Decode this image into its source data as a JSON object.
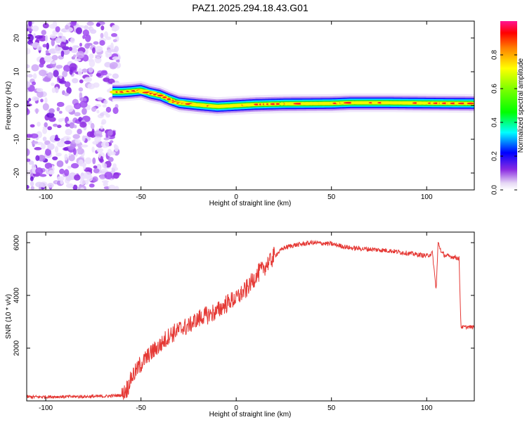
{
  "figure": {
    "title": "PAZ1.2025.294.18.43.G01"
  },
  "chart_data": [
    {
      "type": "heatmap",
      "name": "spectrogram",
      "xlabel": "Height of straight line (km)",
      "ylabel": "Frequency (Hz)",
      "xlim": [
        -110,
        125
      ],
      "ylim": [
        -25,
        25
      ],
      "x_ticks": [
        -100,
        -50,
        0,
        50,
        100
      ],
      "y_ticks": [
        -20,
        -10,
        0,
        10,
        20
      ],
      "noise_region_x": [
        -110,
        -62
      ],
      "signal_start_x": -65,
      "signal_track": {
        "x": [
          -65,
          -60,
          -55,
          -50,
          -45,
          -40,
          -35,
          -30,
          -20,
          -10,
          0,
          10,
          25,
          50,
          60,
          80,
          100,
          125
        ],
        "freq": [
          4,
          4,
          4.2,
          4.5,
          3.6,
          3,
          1.8,
          0.8,
          0.2,
          -0.3,
          0,
          0.3,
          0.5,
          0.6,
          0.8,
          0.8,
          0.7,
          0.6
        ]
      },
      "colorbar": {
        "label": "Normalized spectral amplitude",
        "range": [
          0,
          1
        ],
        "ticks": [
          "0.0",
          "0.2",
          "0.4",
          "0.6",
          "0.8"
        ],
        "tick_values": [
          0,
          0.2,
          0.4,
          0.6,
          0.8
        ]
      }
    },
    {
      "type": "line",
      "name": "snr",
      "xlabel": "Height of straight line (km)",
      "ylabel": "SNR (10 * v/v)",
      "xlim": [
        -110,
        125
      ],
      "ylim": [
        0,
        6400
      ],
      "x_ticks": [
        -100,
        -50,
        0,
        50,
        100
      ],
      "y_ticks": [
        2000,
        4000,
        6000
      ],
      "line_color": "#e53935",
      "series": [
        {
          "name": "SNR",
          "x": [
            -110,
            -90,
            -70,
            -60,
            -57,
            -55,
            -50,
            -45,
            -40,
            -35,
            -30,
            -25,
            -20,
            -15,
            -10,
            -5,
            0,
            5,
            10,
            15,
            20,
            25,
            30,
            40,
            50,
            60,
            70,
            80,
            90,
            100,
            103,
            105,
            106,
            108,
            110,
            115,
            117,
            118,
            120,
            125
          ],
          "y": [
            150,
            160,
            170,
            220,
            500,
            900,
            1400,
            1800,
            2100,
            2500,
            2700,
            2850,
            3100,
            3250,
            3400,
            3700,
            3900,
            4200,
            4700,
            5100,
            5500,
            5800,
            5900,
            6000,
            5950,
            5800,
            5750,
            5700,
            5600,
            5500,
            5600,
            4200,
            6000,
            5600,
            5500,
            5450,
            5400,
            2800,
            2800,
            2800
          ]
        }
      ]
    }
  ]
}
